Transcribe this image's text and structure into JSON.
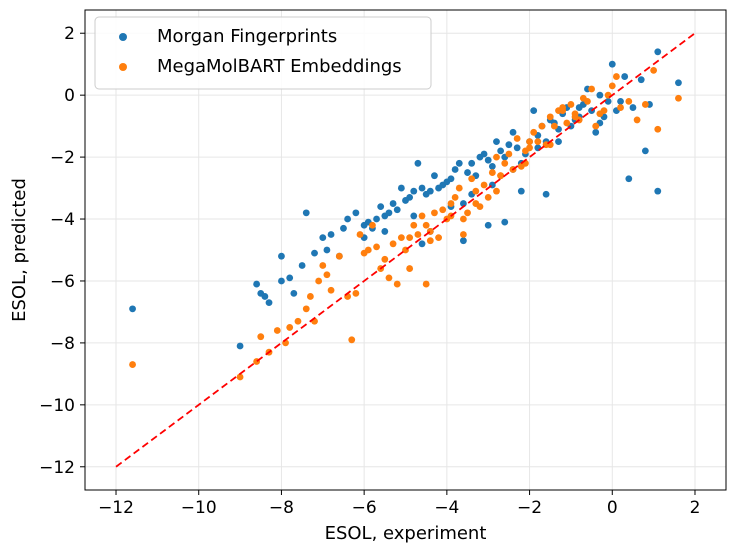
{
  "chart_data": {
    "type": "scatter",
    "xlabel": "ESOL, experiment",
    "ylabel": "ESOL, predicted",
    "xlim": [
      -12.75,
      2.75
    ],
    "ylim": [
      -12.75,
      2.75
    ],
    "xticks": [
      -12,
      -10,
      -8,
      -6,
      -4,
      -2,
      0,
      2
    ],
    "yticks": [
      -12,
      -10,
      -8,
      -6,
      -4,
      -2,
      0,
      2
    ],
    "xtick_labels": [
      "−12",
      "−10",
      "−8",
      "−6",
      "−4",
      "−2",
      "0",
      "2"
    ],
    "ytick_labels": [
      "−12",
      "−10",
      "−8",
      "−6",
      "−4",
      "−2",
      "0",
      "2"
    ],
    "grid": true,
    "legend_position": "top-left",
    "reference_line": {
      "x": [
        -12,
        2
      ],
      "y": [
        -12,
        2
      ],
      "color": "#ff0000",
      "style": "dashed"
    },
    "series": [
      {
        "name": "Morgan Fingerprints",
        "color": "#1f77b4",
        "x": [
          -11.6,
          -9.0,
          -8.6,
          -8.5,
          -8.4,
          -8.3,
          -8.0,
          -8.0,
          -7.8,
          -7.7,
          -7.5,
          -7.4,
          -7.2,
          -7.0,
          -6.9,
          -6.8,
          -6.6,
          -6.5,
          -6.4,
          -6.2,
          -6.0,
          -5.9,
          -5.8,
          -5.7,
          -5.6,
          -5.5,
          -5.4,
          -5.3,
          -5.2,
          -5.1,
          -5.0,
          -4.9,
          -4.8,
          -4.7,
          -4.6,
          -4.5,
          -4.4,
          -4.3,
          -4.2,
          -4.1,
          -4.0,
          -3.9,
          -3.8,
          -3.7,
          -3.6,
          -3.5,
          -3.4,
          -3.3,
          -3.2,
          -3.1,
          -3.0,
          -2.9,
          -2.8,
          -2.7,
          -2.6,
          -2.5,
          -2.4,
          -2.3,
          -2.2,
          -2.1,
          -2.0,
          -1.9,
          -1.8,
          -1.7,
          -1.6,
          -1.5,
          -1.4,
          -1.3,
          -1.2,
          -1.1,
          -1.0,
          -0.9,
          -0.8,
          -0.7,
          -0.6,
          -0.5,
          -0.4,
          -0.3,
          -0.2,
          -0.1,
          0.0,
          0.1,
          0.2,
          0.3,
          0.5,
          0.7,
          0.9,
          1.1,
          1.1,
          1.6,
          -6.0,
          -5.5,
          -4.8,
          -4.4,
          -3.9,
          -3.4,
          -2.9,
          -2.4,
          -1.8,
          -1.3,
          -0.8,
          -0.3,
          0.4,
          0.8,
          -4.6,
          -3.6,
          -2.6,
          -1.6,
          -3.0,
          -2.2
        ],
        "y": [
          -6.9,
          -8.1,
          -6.1,
          -6.4,
          -6.5,
          -6.7,
          -5.2,
          -6.0,
          -5.9,
          -6.4,
          -5.5,
          -3.8,
          -5.1,
          -4.6,
          -5.0,
          -4.5,
          -5.2,
          -4.3,
          -4.0,
          -3.8,
          -4.2,
          -4.1,
          -4.3,
          -4.0,
          -3.6,
          -3.9,
          -3.8,
          -3.5,
          -3.7,
          -3.0,
          -3.4,
          -3.3,
          -3.1,
          -2.2,
          -3.0,
          -3.2,
          -3.1,
          -2.6,
          -3.0,
          -2.9,
          -2.8,
          -2.7,
          -2.4,
          -2.2,
          -3.5,
          -2.5,
          -2.2,
          -2.6,
          -2.0,
          -1.9,
          -2.1,
          -2.3,
          -1.5,
          -1.8,
          -2.0,
          -1.6,
          -1.2,
          -1.7,
          -2.2,
          -1.9,
          -1.5,
          -0.5,
          -1.3,
          -1.0,
          -1.5,
          -0.8,
          -0.9,
          -1.1,
          -0.6,
          -0.4,
          -1.0,
          -0.8,
          -0.7,
          -0.3,
          0.2,
          -0.5,
          -1.2,
          0.0,
          -0.7,
          -0.2,
          1.0,
          -0.5,
          -0.2,
          0.6,
          -0.4,
          0.5,
          -0.3,
          1.4,
          -3.1,
          0.4,
          -4.6,
          -4.4,
          -3.9,
          -4.4,
          -3.6,
          -3.2,
          -2.9,
          -2.4,
          -1.7,
          -1.5,
          -0.4,
          -0.9,
          -2.7,
          -1.8,
          -4.8,
          -4.7,
          -4.1,
          -3.2,
          -4.2,
          -3.1
        ]
      },
      {
        "name": "MegaMolBART Embeddings",
        "color": "#ff7f0e",
        "x": [
          -11.6,
          -9.0,
          -8.6,
          -8.5,
          -8.3,
          -8.1,
          -7.9,
          -7.8,
          -7.6,
          -7.4,
          -7.3,
          -7.1,
          -7.0,
          -6.9,
          -6.8,
          -6.6,
          -6.4,
          -6.3,
          -6.1,
          -6.0,
          -5.9,
          -5.8,
          -5.6,
          -5.5,
          -5.3,
          -5.2,
          -5.0,
          -4.9,
          -4.8,
          -4.7,
          -4.6,
          -4.5,
          -4.4,
          -4.3,
          -4.2,
          -4.1,
          -4.0,
          -3.9,
          -3.8,
          -3.7,
          -3.6,
          -3.5,
          -3.4,
          -3.3,
          -3.2,
          -3.1,
          -3.0,
          -2.9,
          -2.8,
          -2.7,
          -2.6,
          -2.5,
          -2.4,
          -2.3,
          -2.2,
          -2.1,
          -2.0,
          -1.9,
          -1.8,
          -1.7,
          -1.6,
          -1.5,
          -1.4,
          -1.3,
          -1.2,
          -1.1,
          -1.0,
          -0.9,
          -0.8,
          -0.7,
          -0.6,
          -0.5,
          -0.4,
          -0.3,
          -0.2,
          -0.1,
          0.0,
          0.1,
          0.2,
          0.4,
          0.6,
          0.8,
          1.0,
          1.1,
          1.6,
          -7.2,
          -6.2,
          -5.7,
          -5.1,
          -4.5,
          -3.9,
          -3.3,
          -2.7,
          -2.1,
          -1.5,
          -0.9,
          -4.4,
          -3.6,
          -2.8,
          -2.0,
          -1.2,
          -5.4,
          -4.9
        ],
        "y": [
          -8.7,
          -9.1,
          -8.6,
          -7.8,
          -8.3,
          -7.6,
          -8.0,
          -7.5,
          -7.3,
          -6.9,
          -6.5,
          -6.0,
          -5.5,
          -5.8,
          -6.3,
          -5.2,
          -6.5,
          -7.9,
          -4.5,
          -5.1,
          -5.0,
          -4.2,
          -5.6,
          -5.3,
          -4.8,
          -6.1,
          -5.0,
          -4.6,
          -4.2,
          -4.5,
          -3.9,
          -6.1,
          -4.4,
          -3.8,
          -4.6,
          -3.7,
          -4.0,
          -3.5,
          -3.3,
          -3.0,
          -4.0,
          -3.8,
          -2.7,
          -3.5,
          -3.6,
          -2.9,
          -3.3,
          -2.5,
          -2.0,
          -2.6,
          -2.2,
          -1.9,
          -2.4,
          -1.4,
          -2.3,
          -1.8,
          -1.7,
          -1.2,
          -1.5,
          -1.0,
          -1.6,
          -0.7,
          -1.0,
          -0.5,
          -0.4,
          -0.9,
          -0.3,
          -0.6,
          -0.8,
          -0.1,
          -0.2,
          0.2,
          -1.0,
          -0.6,
          -0.5,
          0.0,
          0.3,
          0.6,
          -0.4,
          -0.2,
          -0.8,
          -0.3,
          0.8,
          -1.1,
          -0.1,
          -7.3,
          -6.4,
          -4.9,
          -4.6,
          -4.2,
          -3.9,
          -3.1,
          -2.6,
          -2.2,
          -1.6,
          -0.7,
          -4.7,
          -4.5,
          -3.1,
          -1.5,
          -0.5,
          -5.9,
          -5.6
        ]
      }
    ]
  }
}
